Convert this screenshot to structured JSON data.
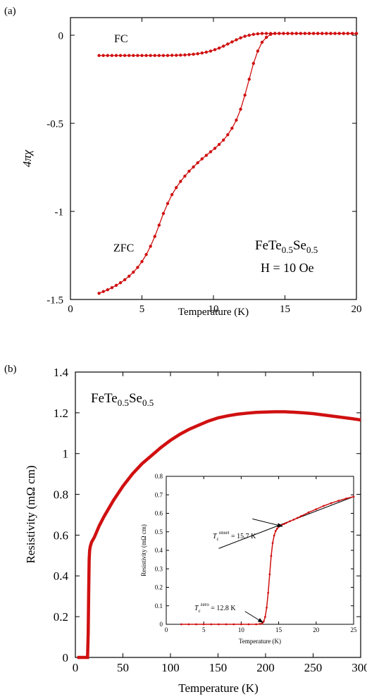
{
  "colors": {
    "series": "#d01010",
    "axis": "#000000",
    "fit": "#000000"
  },
  "chart_data": [
    {
      "panel_label": "(a)",
      "type": "scatter",
      "xlabel": "Temperature (K)",
      "ylabel": "4πχ",
      "xlim": [
        0,
        20
      ],
      "ylim": [
        -1.5,
        0.1
      ],
      "xticks": [
        0,
        5,
        10,
        15,
        20
      ],
      "yticks": [
        0,
        -0.5,
        -1,
        -1.5
      ],
      "xtick_labels": [
        "0",
        "5",
        "10",
        "15",
        "20"
      ],
      "ytick_labels": [
        "0",
        "-0.5",
        "-1",
        "-1.5"
      ],
      "grid": false,
      "annotations": {
        "fc": "FC",
        "zfc": "ZFC",
        "sample_base1": "FeTe",
        "sample_sub1": "0.5",
        "sample_base2": "Se",
        "sample_sub2": "0.5",
        "field": "H = 10 Oe"
      },
      "series": [
        {
          "label": "FC",
          "x": [
            2,
            2.3,
            2.6,
            2.9,
            3.2,
            3.5,
            3.8,
            4.1,
            4.4,
            4.7,
            5.0,
            5.3,
            5.6,
            5.9,
            6.2,
            6.5,
            6.8,
            7.1,
            7.4,
            7.7,
            8.0,
            8.3,
            8.6,
            8.9,
            9.2,
            9.5,
            9.8,
            10.1,
            10.4,
            10.7,
            11.0,
            11.3,
            11.6,
            11.9,
            12.2,
            12.5,
            12.8,
            13.1,
            13.4,
            13.7,
            14.0,
            14.3,
            14.6,
            14.9,
            15.2,
            15.5,
            15.8,
            16.1,
            16.4,
            16.7,
            17.0,
            17.3,
            17.6,
            17.9,
            18.2,
            18.5,
            18.8,
            19.1,
            19.4,
            19.7,
            20.0
          ],
          "y": [
            -0.115,
            -0.115,
            -0.115,
            -0.115,
            -0.115,
            -0.115,
            -0.115,
            -0.115,
            -0.115,
            -0.115,
            -0.115,
            -0.115,
            -0.115,
            -0.115,
            -0.115,
            -0.115,
            -0.115,
            -0.114,
            -0.114,
            -0.113,
            -0.112,
            -0.11,
            -0.108,
            -0.105,
            -0.101,
            -0.096,
            -0.09,
            -0.082,
            -0.073,
            -0.062,
            -0.05,
            -0.038,
            -0.026,
            -0.015,
            -0.006,
            0.0,
            0.005,
            0.008,
            0.01,
            0.01,
            0.01,
            0.01,
            0.01,
            0.01,
            0.01,
            0.01,
            0.01,
            0.01,
            0.01,
            0.01,
            0.01,
            0.01,
            0.01,
            0.01,
            0.01,
            0.01,
            0.01,
            0.01,
            0.01,
            0.01,
            0.01
          ]
        },
        {
          "label": "ZFC",
          "x": [
            2,
            2.3,
            2.6,
            2.9,
            3.2,
            3.5,
            3.8,
            4.1,
            4.4,
            4.7,
            5.0,
            5.3,
            5.6,
            5.9,
            6.2,
            6.5,
            6.8,
            7.1,
            7.4,
            7.7,
            8.0,
            8.3,
            8.6,
            8.9,
            9.2,
            9.5,
            9.8,
            10.1,
            10.4,
            10.7,
            11.0,
            11.3,
            11.6,
            11.9,
            12.2,
            12.5,
            12.8,
            13.1,
            13.4,
            13.7,
            14.0,
            14.3,
            14.6,
            14.9,
            15.2,
            15.5,
            15.8,
            16.1,
            16.4,
            16.7,
            17.0,
            17.3,
            17.6,
            17.9,
            18.2,
            18.5,
            18.8,
            19.1,
            19.4,
            19.7,
            20.0
          ],
          "y": [
            -1.465,
            -1.455,
            -1.445,
            -1.433,
            -1.42,
            -1.405,
            -1.388,
            -1.368,
            -1.345,
            -1.318,
            -1.285,
            -1.245,
            -1.198,
            -1.142,
            -1.078,
            -1.012,
            -0.955,
            -0.905,
            -0.865,
            -0.83,
            -0.8,
            -0.772,
            -0.748,
            -0.724,
            -0.702,
            -0.682,
            -0.662,
            -0.642,
            -0.62,
            -0.595,
            -0.565,
            -0.528,
            -0.482,
            -0.42,
            -0.34,
            -0.25,
            -0.16,
            -0.09,
            -0.04,
            -0.012,
            0.005,
            0.01,
            0.01,
            0.01,
            0.01,
            0.01,
            0.01,
            0.01,
            0.01,
            0.01,
            0.01,
            0.01,
            0.01,
            0.01,
            0.01,
            0.01,
            0.01,
            0.01,
            0.01,
            0.01,
            0.01
          ]
        }
      ]
    },
    {
      "panel_label": "(b)",
      "type": "line",
      "xlabel": "Temperature (K)",
      "ylabel": "Resistivity (mΩ cm)",
      "xlim": [
        0,
        300
      ],
      "ylim": [
        0,
        1.4
      ],
      "xticks": [
        0,
        50,
        100,
        150,
        200,
        250,
        300
      ],
      "yticks": [
        0,
        0.2,
        0.4,
        0.6,
        0.8,
        1,
        1.2,
        1.4
      ],
      "xtick_labels": [
        "0",
        "50",
        "100",
        "150",
        "200",
        "250",
        "300"
      ],
      "ytick_labels": [
        "0",
        "0.2",
        "0.4",
        "0.6",
        "0.8",
        "1",
        "1.2",
        "1.4"
      ],
      "grid": false,
      "annotations": {
        "sample_base1": "FeTe",
        "sample_sub1": "0.5",
        "sample_base2": "Se",
        "sample_sub2": "0.5"
      },
      "series": [
        {
          "x": [
            2,
            6,
            10,
            12.8,
            13.5,
            14.0,
            14.5,
            15.0,
            15.7,
            17,
            20,
            25,
            30,
            40,
            50,
            60,
            70,
            80,
            90,
            100,
            110,
            120,
            130,
            140,
            150,
            160,
            170,
            180,
            190,
            200,
            210,
            220,
            230,
            240,
            250,
            260,
            270,
            280,
            290,
            300
          ],
          "y": [
            0,
            0,
            0,
            0,
            0.12,
            0.32,
            0.48,
            0.525,
            0.545,
            0.565,
            0.59,
            0.645,
            0.69,
            0.77,
            0.84,
            0.9,
            0.95,
            0.99,
            1.03,
            1.065,
            1.095,
            1.12,
            1.14,
            1.16,
            1.175,
            1.185,
            1.193,
            1.198,
            1.202,
            1.204,
            1.205,
            1.205,
            1.203,
            1.2,
            1.196,
            1.19,
            1.184,
            1.178,
            1.172,
            1.165
          ]
        }
      ],
      "inset": {
        "type": "line",
        "xlabel": "Temperature (K)",
        "ylabel": "Resistivity (mΩ cm)",
        "xlim": [
          0,
          25
        ],
        "ylim": [
          0,
          0.8
        ],
        "xticks": [
          0,
          5,
          10,
          15,
          20,
          25
        ],
        "yticks": [
          0,
          0.1,
          0.2,
          0.3,
          0.4,
          0.5,
          0.6,
          0.7,
          0.8
        ],
        "xtick_labels": [
          "0",
          "5",
          "10",
          "15",
          "20",
          "25"
        ],
        "ytick_labels": [
          "0",
          "0.1",
          "0.2",
          "0.3",
          "0.4",
          "0.5",
          "0.6",
          "0.7",
          "0.8"
        ],
        "annotations": {
          "tc_onset_sym": "T",
          "tc_onset_sub": "c",
          "tc_onset_sup": "onset",
          "tc_onset_value": " = 15.7 K",
          "tc_zero_sym": "T",
          "tc_zero_sub": "c",
          "tc_zero_sup": "zero",
          "tc_zero_value": " = 12.8 K"
        },
        "arrows": {
          "onset_from": [
            11.5,
            0.57
          ],
          "onset_to": [
            15.5,
            0.53
          ],
          "zero_from": [
            10.5,
            0.07
          ],
          "zero_to": [
            12.9,
            0.01
          ]
        },
        "fit_line": {
          "x": [
            7,
            25
          ],
          "y": [
            0.41,
            0.69
          ]
        },
        "series": [
          {
            "x": [
              2,
              3,
              4,
              5,
              6,
              7,
              8,
              9,
              10,
              11,
              12,
              12.5,
              12.8,
              13.0,
              13.2,
              13.4,
              13.6,
              13.8,
              14.0,
              14.2,
              14.4,
              14.6,
              14.8,
              15.0,
              15.3,
              15.7,
              16.0,
              16.5,
              17,
              17.5,
              18,
              19,
              20,
              21,
              22,
              23,
              24,
              25
            ],
            "y": [
              0,
              0,
              0,
              0,
              0,
              0,
              0,
              0,
              0,
              0,
              0,
              0.002,
              0.004,
              0.015,
              0.04,
              0.09,
              0.17,
              0.27,
              0.37,
              0.44,
              0.48,
              0.505,
              0.517,
              0.527,
              0.535,
              0.542,
              0.548,
              0.557,
              0.566,
              0.575,
              0.585,
              0.605,
              0.622,
              0.64,
              0.655,
              0.668,
              0.68,
              0.69
            ]
          }
        ]
      }
    }
  ]
}
